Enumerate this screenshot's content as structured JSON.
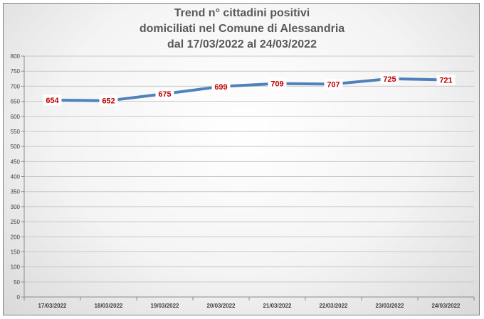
{
  "chart_data": {
    "type": "line",
    "title_lines": [
      "Trend n° cittadini positivi",
      "domiciliati nel Comune di Alessandria",
      "dal 17/03/2022 al 24/03/2022"
    ],
    "categories": [
      "17/03/2022",
      "18/03/2022",
      "19/03/2022",
      "20/03/2022",
      "21/03/2022",
      "22/03/2022",
      "23/03/2022",
      "24/03/2022"
    ],
    "series": [
      {
        "values": [
          654,
          652,
          675,
          699,
          709,
          707,
          725,
          721
        ]
      }
    ],
    "ylim": [
      0,
      800
    ],
    "ystep": 50,
    "grid": true,
    "line_color": "#4f81bd",
    "label_color": "#c00000"
  }
}
